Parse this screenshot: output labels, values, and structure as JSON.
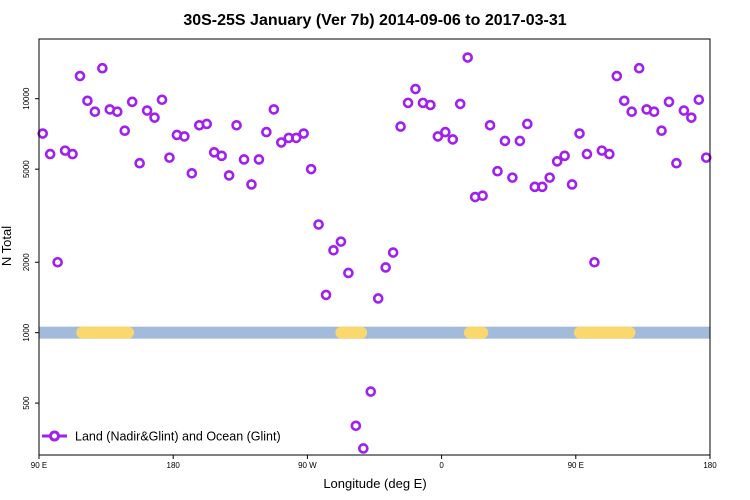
{
  "chart_data": {
    "type": "scatter",
    "title": "30S-25S January (Ver 7b)   2014-09-06 to 2017-03-31",
    "xlabel": "Longitude (deg E)",
    "ylabel": "N Total",
    "xlim": [
      90,
      450
    ],
    "ylim": [
      300,
      18000
    ],
    "yscale": "log",
    "x_ticks": [
      {
        "value": 90,
        "label": "90 E"
      },
      {
        "value": 162,
        "label": "180"
      },
      {
        "value": 234,
        "label": "90 W"
      },
      {
        "value": 306,
        "label": "0"
      },
      {
        "value": 378,
        "label": "90 E"
      },
      {
        "value": 450,
        "label": "180"
      }
    ],
    "y_ticks": [
      {
        "value": 500,
        "label": "500"
      },
      {
        "value": 1000,
        "label": "1000"
      },
      {
        "value": 2000,
        "label": "2000"
      },
      {
        "value": 5000,
        "label": "5000"
      },
      {
        "value": 10000,
        "label": "10000"
      }
    ],
    "series": [
      {
        "name": "Land (Nadir&Glint) and Ocean (Glint)",
        "color": "#a020f0",
        "marker": "open-circle",
        "x": [
          92,
          96,
          100,
          104,
          108,
          112,
          116,
          120,
          124,
          128,
          132,
          136,
          140,
          144,
          148,
          152,
          156,
          160,
          164,
          168,
          172,
          176,
          180,
          184,
          188,
          192,
          196,
          200,
          204,
          208,
          212,
          216,
          220,
          224,
          228,
          232,
          236,
          240,
          244,
          248,
          252,
          256,
          260,
          264,
          268,
          272,
          276,
          280,
          284,
          288,
          292,
          296,
          300,
          304,
          308,
          312,
          316,
          320,
          324,
          328,
          332,
          336,
          340,
          344,
          348,
          352,
          356,
          360,
          364,
          368,
          372,
          376,
          380,
          384,
          388,
          392,
          396,
          400,
          404,
          408,
          412,
          416,
          420,
          424,
          428,
          432,
          436,
          440,
          444,
          448
        ],
        "y": [
          7100,
          5800,
          2000,
          6000,
          5800,
          12500,
          9800,
          8800,
          13500,
          9000,
          8800,
          7300,
          9700,
          5300,
          8900,
          8300,
          9900,
          5600,
          7000,
          6900,
          4800,
          7700,
          7800,
          5900,
          5700,
          4700,
          7700,
          5500,
          4300,
          5500,
          7200,
          9000,
          6500,
          6800,
          6800,
          7100,
          5000,
          2900,
          1450,
          2250,
          2450,
          1800,
          400,
          320,
          560,
          1400,
          1900,
          2200,
          7600,
          9600,
          11000,
          9600,
          9400,
          6900,
          7200,
          6700,
          9500,
          15000,
          3800,
          3850,
          7700,
          4900,
          6600,
          4600,
          6600,
          7800,
          4200,
          4200,
          4600,
          5400,
          5700,
          4300,
          7100,
          5800,
          2000,
          6000,
          5800,
          12500,
          9800,
          8800,
          13500,
          9000,
          8800,
          7300,
          9700,
          5300,
          8900,
          8300,
          9900,
          5600
        ]
      }
    ],
    "legend": {
      "position": "bottom-left",
      "label": "Land (Nadir&Glint) and Ocean (Glint)"
    },
    "surface_band": {
      "y_value": 1000,
      "ocean_color": "#a3bbda",
      "land_color": "#fad86e",
      "land_segments": [
        [
          110,
          141
        ],
        [
          249,
          266
        ],
        [
          318,
          331
        ],
        [
          377,
          410
        ]
      ]
    }
  }
}
